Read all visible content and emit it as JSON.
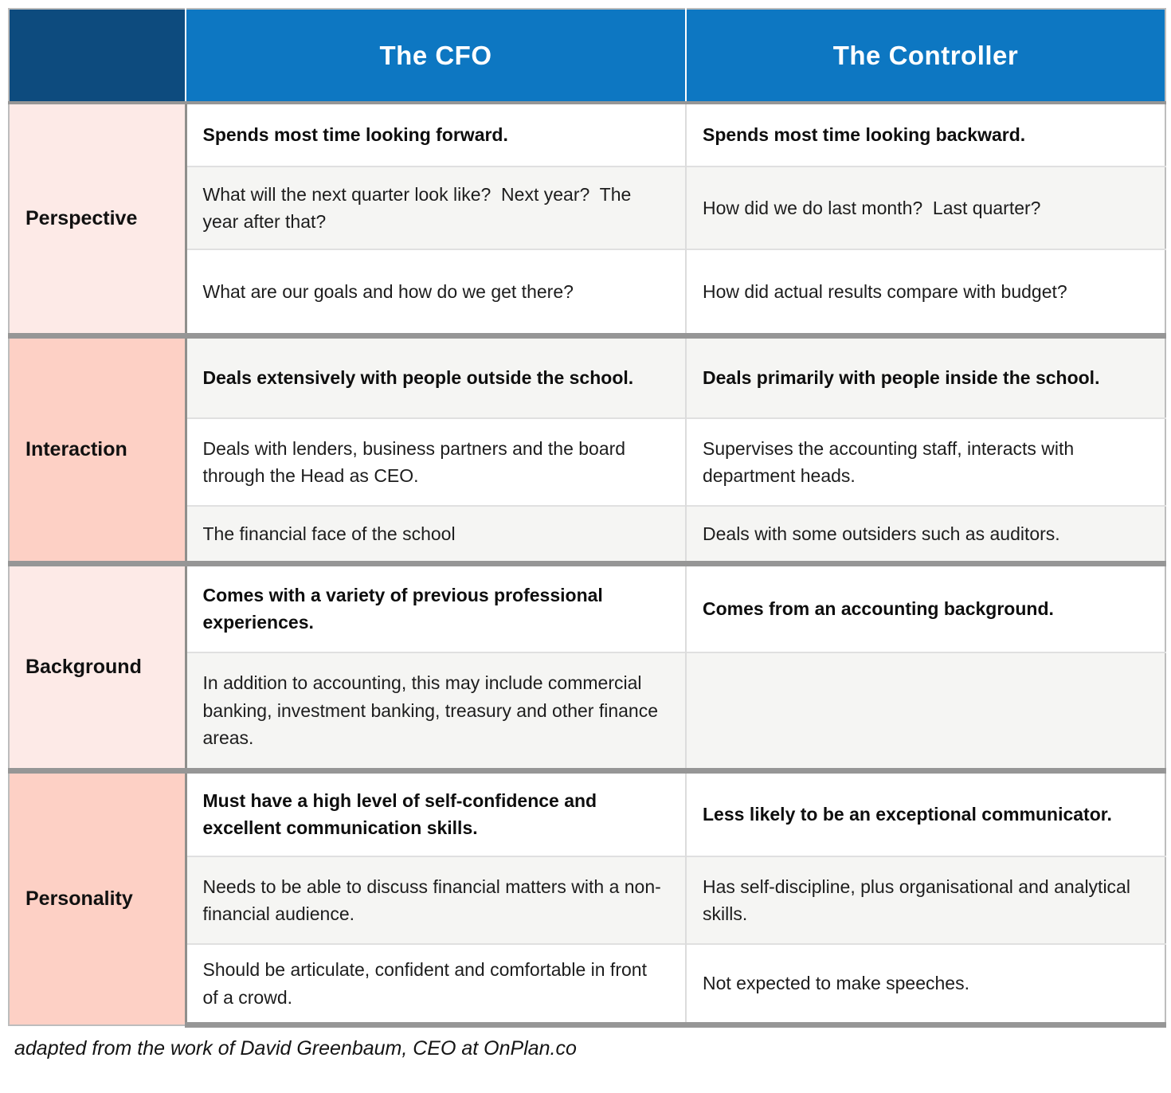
{
  "header": {
    "corner": "",
    "columns": [
      "The CFO",
      "The Controller"
    ]
  },
  "groups": [
    {
      "label": "Perspective",
      "rows": [
        {
          "bold": true,
          "cfo": "Spends most time looking forward.",
          "controller": "Spends most time looking backward."
        },
        {
          "bold": false,
          "cfo": "What will the next quarter look like?  Next year?  The year after that?",
          "controller": "How did we do last month?  Last quarter?"
        },
        {
          "bold": false,
          "cfo": "What are our goals and how do we get there?",
          "controller": "How did actual results compare with budget?"
        }
      ]
    },
    {
      "label": "Interaction",
      "rows": [
        {
          "bold": true,
          "cfo": "Deals extensively with people outside the school.",
          "controller": "Deals primarily with people inside the school."
        },
        {
          "bold": false,
          "cfo": "Deals with lenders, business partners and the board through the Head as CEO.",
          "controller": "Supervises the accounting staff, interacts with department heads."
        },
        {
          "bold": false,
          "cfo": "The financial face of the school",
          "controller": "Deals with some outsiders such as auditors."
        }
      ]
    },
    {
      "label": "Background",
      "rows": [
        {
          "bold": true,
          "cfo": "Comes with a variety of previous professional experiences.",
          "controller": "Comes from an accounting background."
        },
        {
          "bold": false,
          "cfo": "In addition to accounting, this may include commercial banking, investment banking, treasury and other finance areas.",
          "controller": ""
        }
      ]
    },
    {
      "label": "Personality",
      "rows": [
        {
          "bold": true,
          "cfo": "Must have a high level of self-confidence and excellent communication skills.",
          "controller": "Less likely to be an exceptional communicator."
        },
        {
          "bold": false,
          "cfo": "Needs to be able to discuss financial matters with a non-financial audience.",
          "controller": "Has self-discipline, plus organisational and analytical skills."
        },
        {
          "bold": false,
          "cfo": "Should be articulate, confident and comfortable in front of a crowd.",
          "controller": "Not expected to make speeches."
        }
      ]
    }
  ],
  "footer": "adapted from the work of David Greenbaum, CEO at OnPlan.co",
  "colors": {
    "header_navy": "#0d4b7e",
    "header_blue": "#0d77c2",
    "label_pink_light": "#fdeae7",
    "label_pink_dark": "#fdd0c5",
    "stripe_gray": "#f5f5f3",
    "separator_gray": "#969696"
  }
}
